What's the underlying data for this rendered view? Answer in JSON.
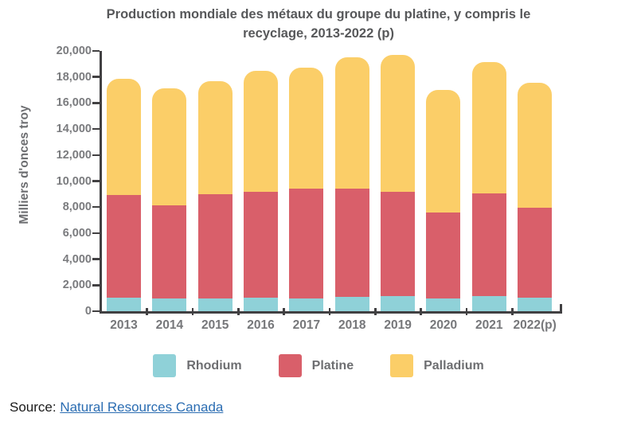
{
  "title": {
    "line1": "Production mondiale des métaux du groupe du platine, y compris le",
    "line2": "recyclage, 2013-2022 (p)"
  },
  "chart_data": {
    "type": "bar",
    "stacked": true,
    "title": "Production mondiale des métaux du groupe du platine, y compris le recyclage, 2013-2022 (p)",
    "ylabel": "Milliers d'onces troy",
    "xlabel": "",
    "ylim": [
      0,
      20000
    ],
    "y_tick_step": 2000,
    "grid": false,
    "legend_position": "bottom",
    "categories": [
      "2013",
      "2014",
      "2015",
      "2016",
      "2017",
      "2018",
      "2019",
      "2020",
      "2021",
      "2022(p)"
    ],
    "series": [
      {
        "name": "Rhodium",
        "color": "#8FD1D8",
        "values": [
          1050,
          950,
          1000,
          1050,
          1000,
          1100,
          1150,
          1000,
          1150,
          1050
        ]
      },
      {
        "name": "Platine",
        "color": "#D95F6A",
        "values": [
          7900,
          7200,
          8000,
          8100,
          8450,
          8350,
          8050,
          6600,
          7900,
          6900
        ]
      },
      {
        "name": "Palladium",
        "color": "#FBCE68",
        "values": [
          8900,
          9000,
          8700,
          9300,
          9250,
          10050,
          10500,
          9400,
          10100,
          9600
        ]
      }
    ],
    "totals": [
      17850,
      17150,
      17700,
      18450,
      18700,
      19500,
      19700,
      17000,
      19150,
      17550
    ],
    "y_ticks": [
      {
        "value": 0,
        "label": "0"
      },
      {
        "value": 2000,
        "label": "2,000"
      },
      {
        "value": 4000,
        "label": "4,000"
      },
      {
        "value": 6000,
        "label": "6,000"
      },
      {
        "value": 8000,
        "label": "8,000"
      },
      {
        "value": 10000,
        "label": "10,000"
      },
      {
        "value": 12000,
        "label": "12,000"
      },
      {
        "value": 14000,
        "label": "14,000"
      },
      {
        "value": 16000,
        "label": "16,000"
      },
      {
        "value": 18000,
        "label": "18,000"
      },
      {
        "value": 20000,
        "label": "20,000"
      }
    ]
  },
  "legend": {
    "items": [
      {
        "label": "Rhodium",
        "color": "#8FD1D8"
      },
      {
        "label": "Platine",
        "color": "#D95F6A"
      },
      {
        "label": "Palladium",
        "color": "#FBCE68"
      }
    ]
  },
  "source": {
    "prefix": "Source: ",
    "link_text": "Natural Resources Canada",
    "link_color": "#2B6DB2"
  },
  "colors": {
    "axis": "#414042",
    "title_text": "#57585A",
    "tick_text": "#7A7B7E",
    "x_label_text": "#76777A",
    "legend_text": "#6D6E71",
    "background": "#FFFFFF"
  }
}
